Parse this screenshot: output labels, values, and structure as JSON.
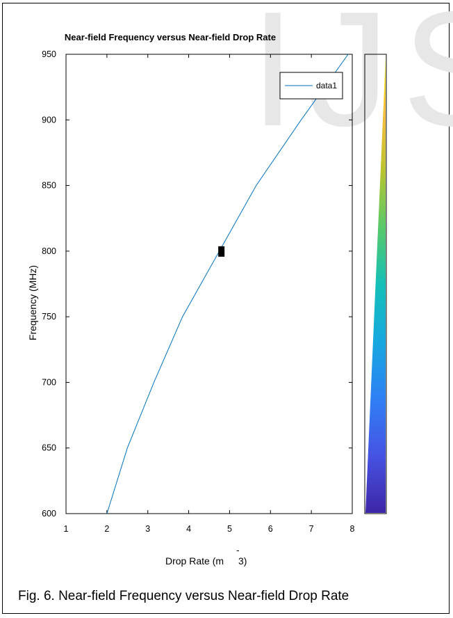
{
  "figure": {
    "caption": "Fig. 6. Near-field Frequency versus Near-field Drop Rate",
    "watermark_text": "IJS"
  },
  "chart_data": {
    "type": "line",
    "title": "Near-field Frequency versus Near-field Drop Rate",
    "xlabel": "Drop Rate (m",
    "xlabel_superscript": "-",
    "xlabel_tail": "3)",
    "ylabel": "Frequency (MHz)",
    "xlim": [
      1,
      8
    ],
    "ylim": [
      600,
      950
    ],
    "xticks": [
      1,
      2,
      3,
      4,
      5,
      6,
      7,
      8
    ],
    "yticks": [
      600,
      650,
      700,
      750,
      800,
      850,
      900,
      950
    ],
    "grid": false,
    "legend": {
      "placement": "top-right",
      "entries": [
        "data1"
      ]
    },
    "series": [
      {
        "name": "data1",
        "color": "#0072BD",
        "x": [
          2.0,
          2.5,
          3.15,
          3.85,
          4.75,
          5.65,
          6.75,
          7.9
        ],
        "y": [
          600,
          650,
          700,
          750,
          800,
          850,
          900,
          950
        ]
      }
    ],
    "marker": {
      "x": 4.8,
      "y": 800,
      "color": "#000000"
    },
    "colorbar": {
      "placement": "right",
      "colors": [
        "#3E26A8",
        "#4653E2",
        "#2F80F5",
        "#17A8DF",
        "#14BFB8",
        "#57C96A",
        "#B9C42F",
        "#F9BD3D",
        "#F9FB15"
      ]
    }
  }
}
